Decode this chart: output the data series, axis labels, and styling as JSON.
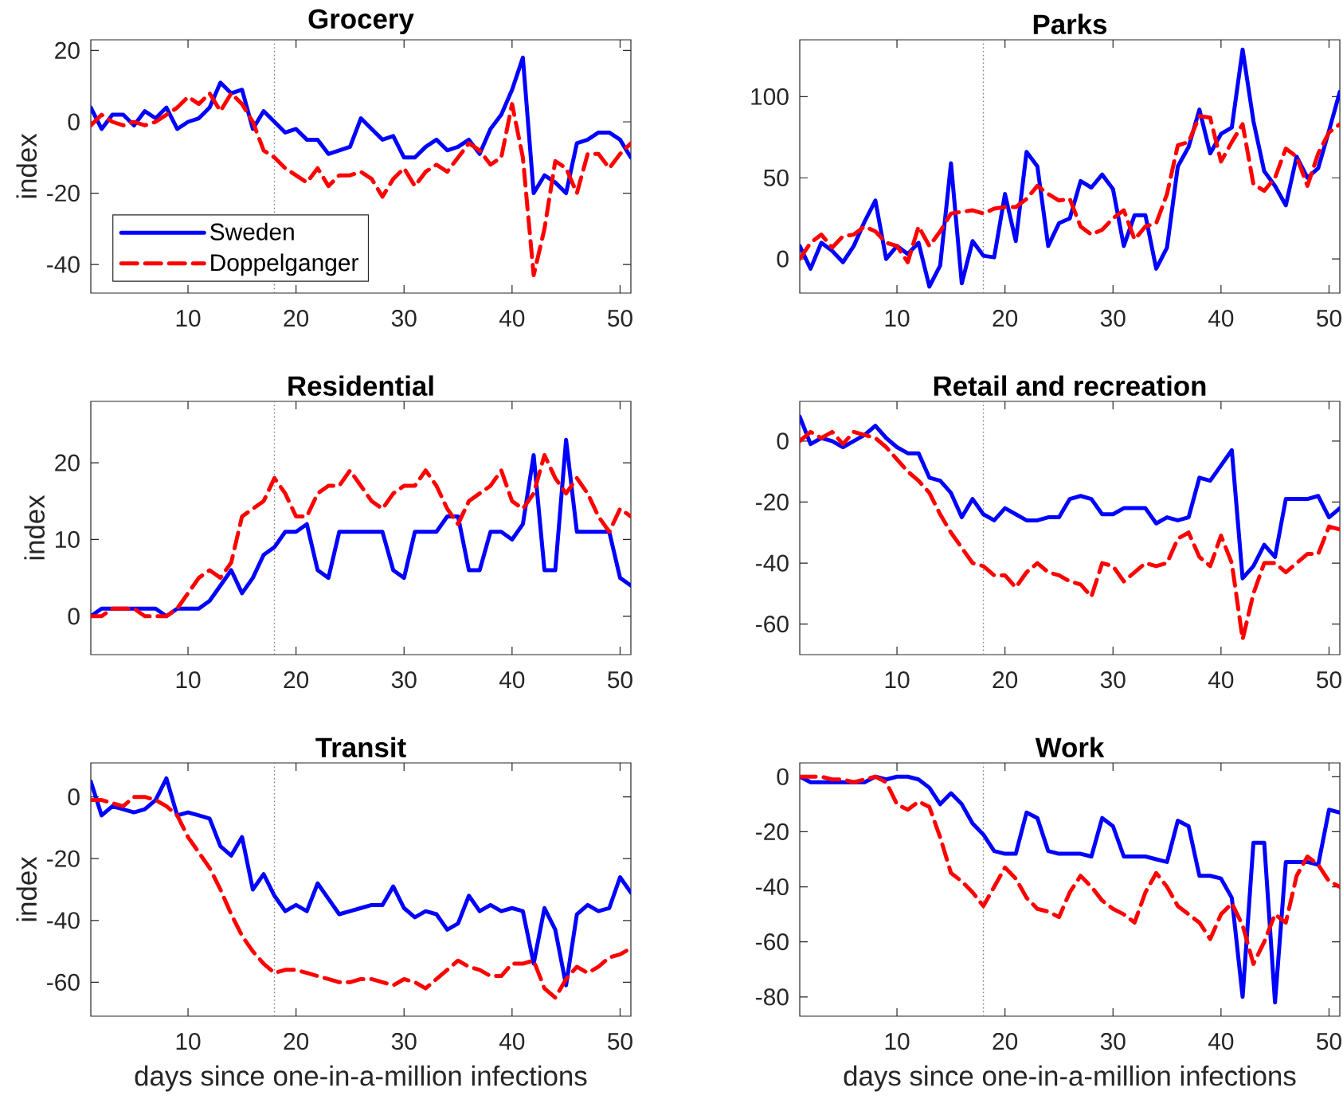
{
  "chart_data": [
    {
      "type": "line",
      "title": "Grocery",
      "ylabel": "index",
      "x": [
        1,
        2,
        3,
        4,
        5,
        6,
        7,
        8,
        9,
        10,
        11,
        12,
        13,
        14,
        15,
        16,
        17,
        18,
        19,
        20,
        21,
        22,
        23,
        24,
        25,
        26,
        27,
        28,
        29,
        30,
        31,
        32,
        33,
        34,
        35,
        36,
        37,
        38,
        39,
        40,
        41,
        42,
        43,
        44,
        45,
        46,
        47,
        48,
        49,
        50,
        51
      ],
      "xlim": [
        1,
        51
      ],
      "ylim": [
        -48,
        23
      ],
      "xticks": [
        10,
        20,
        30,
        40,
        50
      ],
      "yticks": [
        -40,
        -20,
        0,
        20
      ],
      "legend": "bottom left",
      "series": [
        {
          "name": "Sweden",
          "color": "#0000ff",
          "line_style": "solid",
          "values": [
            4,
            -2,
            2,
            2,
            -1,
            3,
            1,
            4,
            -2,
            0,
            1,
            4,
            11,
            8,
            9,
            -2,
            3,
            0,
            -3,
            -2,
            -5,
            -5,
            -9,
            -8,
            -7,
            1,
            -2,
            -5,
            -4,
            -10,
            -10,
            -7,
            -5,
            -8,
            -7,
            -5,
            -9,
            -2,
            2,
            9,
            18,
            -20,
            -15,
            -17,
            -20,
            -6,
            -5,
            -3,
            -3,
            -5,
            -10
          ]
        },
        {
          "name": "Doppelganger",
          "color": "#ff0000",
          "line_style": "dashed",
          "values": [
            -1,
            2,
            0,
            -1,
            0,
            -1,
            0,
            2,
            4,
            7,
            5,
            8,
            3,
            8,
            5,
            0,
            -8,
            -10,
            -13,
            -15,
            -17,
            -13,
            -18,
            -15,
            -15,
            -14,
            -16,
            -21,
            -16,
            -13,
            -18,
            -14,
            -12,
            -14,
            -10,
            -6,
            -8,
            -12,
            -10,
            5,
            -10,
            -43,
            -30,
            -11,
            -13,
            -20,
            -9,
            -9,
            -13,
            -9,
            -6
          ]
        }
      ],
      "ref_lines": [
        {
          "axis": "x",
          "value": 18,
          "color": "#808080",
          "line_style": "dotted"
        }
      ]
    },
    {
      "type": "line",
      "title": "Parks",
      "x": [
        1,
        2,
        3,
        4,
        5,
        6,
        7,
        8,
        9,
        10,
        11,
        12,
        13,
        14,
        15,
        16,
        17,
        18,
        19,
        20,
        21,
        22,
        23,
        24,
        25,
        26,
        27,
        28,
        29,
        30,
        31,
        32,
        33,
        34,
        35,
        36,
        37,
        38,
        39,
        40,
        41,
        42,
        43,
        44,
        45,
        46,
        47,
        48,
        49,
        50,
        51
      ],
      "xlim": [
        1,
        51
      ],
      "ylim": [
        -21,
        135
      ],
      "xticks": [
        10,
        20,
        30,
        40,
        50
      ],
      "yticks": [
        0,
        50,
        100
      ],
      "series": [
        {
          "color": "#0000ff",
          "line_style": "solid",
          "values": [
            8,
            -6,
            10,
            5,
            -2,
            8,
            23,
            36,
            0,
            8,
            3,
            10,
            -17,
            -4,
            59,
            -15,
            11,
            2,
            1,
            40,
            11,
            66,
            57,
            8,
            22,
            25,
            48,
            44,
            52,
            43,
            8,
            27,
            27,
            -6,
            7,
            57,
            69,
            92,
            65,
            77,
            81,
            129,
            85,
            54,
            45,
            33,
            63,
            50,
            56,
            79,
            103
          ]
        },
        {
          "color": "#ff0000",
          "line_style": "dashed",
          "values": [
            0,
            10,
            15,
            7,
            14,
            15,
            20,
            17,
            10,
            8,
            -2,
            20,
            8,
            17,
            28,
            29,
            30,
            28,
            31,
            32,
            32,
            37,
            45,
            40,
            36,
            37,
            20,
            15,
            18,
            25,
            30,
            12,
            20,
            22,
            40,
            70,
            72,
            88,
            87,
            60,
            72,
            83,
            46,
            42,
            50,
            68,
            63,
            45,
            65,
            78,
            83
          ]
        }
      ],
      "ref_lines": [
        {
          "axis": "x",
          "value": 18,
          "color": "#808080",
          "line_style": "dotted"
        }
      ]
    },
    {
      "type": "line",
      "title": "Residential",
      "ylabel": "index",
      "x": [
        1,
        2,
        3,
        4,
        5,
        6,
        7,
        8,
        9,
        10,
        11,
        12,
        13,
        14,
        15,
        16,
        17,
        18,
        19,
        20,
        21,
        22,
        23,
        24,
        25,
        26,
        27,
        28,
        29,
        30,
        31,
        32,
        33,
        34,
        35,
        36,
        37,
        38,
        39,
        40,
        41,
        42,
        43,
        44,
        45,
        46,
        47,
        48,
        49,
        50,
        51
      ],
      "xlim": [
        1,
        51
      ],
      "ylim": [
        -5,
        28
      ],
      "xticks": [
        10,
        20,
        30,
        40,
        50
      ],
      "yticks": [
        0,
        10,
        20
      ],
      "series": [
        {
          "color": "#0000ff",
          "line_style": "solid",
          "values": [
            0,
            1,
            1,
            1,
            1,
            1,
            1,
            0,
            1,
            1,
            1,
            2,
            4,
            6,
            3,
            5,
            8,
            9,
            11,
            11,
            12,
            6,
            5,
            11,
            11,
            11,
            11,
            11,
            6,
            5,
            11,
            11,
            11,
            13,
            13,
            6,
            6,
            11,
            11,
            10,
            12,
            21,
            6,
            6,
            23,
            11,
            11,
            11,
            11,
            5,
            4
          ]
        },
        {
          "color": "#ff0000",
          "line_style": "dashed",
          "values": [
            0,
            0,
            1,
            1,
            1,
            0,
            0,
            0,
            1,
            3,
            5,
            6,
            5,
            7,
            13,
            14,
            15,
            18,
            16,
            13,
            13,
            16,
            17,
            17,
            19,
            17,
            15,
            14,
            16,
            17,
            17,
            19,
            17,
            14,
            12,
            15,
            16,
            17,
            19,
            15,
            14,
            16,
            21,
            18,
            16,
            18,
            16,
            13,
            11,
            14,
            13
          ]
        }
      ],
      "ref_lines": [
        {
          "axis": "x",
          "value": 18,
          "color": "#808080",
          "line_style": "dotted"
        }
      ]
    },
    {
      "type": "line",
      "title": "Retail and recreation",
      "x": [
        1,
        2,
        3,
        4,
        5,
        6,
        7,
        8,
        9,
        10,
        11,
        12,
        13,
        14,
        15,
        16,
        17,
        18,
        19,
        20,
        21,
        22,
        23,
        24,
        25,
        26,
        27,
        28,
        29,
        30,
        31,
        32,
        33,
        34,
        35,
        36,
        37,
        38,
        39,
        40,
        41,
        42,
        43,
        44,
        45,
        46,
        47,
        48,
        49,
        50,
        51
      ],
      "xlim": [
        1,
        51
      ],
      "ylim": [
        -70,
        13
      ],
      "xticks": [
        10,
        20,
        30,
        40,
        50
      ],
      "yticks": [
        -60,
        -40,
        -20,
        0
      ],
      "series": [
        {
          "color": "#0000ff",
          "line_style": "solid",
          "values": [
            8,
            -1,
            1,
            0,
            -2,
            0,
            2,
            5,
            1,
            -2,
            -4,
            -4,
            -12,
            -13,
            -17,
            -25,
            -19,
            -24,
            -26,
            -22,
            -24,
            -26,
            -26,
            -25,
            -25,
            -19,
            -18,
            -19,
            -24,
            -24,
            -22,
            -22,
            -22,
            -27,
            -25,
            -26,
            -25,
            -12,
            -13,
            -8,
            -3,
            -45,
            -41,
            -34,
            -38,
            -19,
            -19,
            -19,
            -18,
            -25,
            -22
          ]
        },
        {
          "color": "#ff0000",
          "line_style": "dashed",
          "values": [
            0,
            3,
            1,
            3,
            -1,
            3,
            2,
            1,
            -2,
            -6,
            -10,
            -13,
            -17,
            -24,
            -30,
            -35,
            -40,
            -41,
            -44,
            -44,
            -48,
            -43,
            -40,
            -43,
            -44,
            -46,
            -47,
            -51,
            -40,
            -41,
            -46,
            -43,
            -40,
            -41,
            -40,
            -32,
            -30,
            -38,
            -41,
            -31,
            -40,
            -65,
            -50,
            -40,
            -40,
            -43,
            -40,
            -37,
            -37,
            -28,
            -29
          ]
        }
      ],
      "ref_lines": [
        {
          "axis": "x",
          "value": 18,
          "color": "#808080",
          "line_style": "dotted"
        }
      ]
    },
    {
      "type": "line",
      "title": "Transit",
      "xlabel": "days since one-in-a-million infections",
      "ylabel": "index",
      "x": [
        1,
        2,
        3,
        4,
        5,
        6,
        7,
        8,
        9,
        10,
        11,
        12,
        13,
        14,
        15,
        16,
        17,
        18,
        19,
        20,
        21,
        22,
        23,
        24,
        25,
        26,
        27,
        28,
        29,
        30,
        31,
        32,
        33,
        34,
        35,
        36,
        37,
        38,
        39,
        40,
        41,
        42,
        43,
        44,
        45,
        46,
        47,
        48,
        49,
        50,
        51
      ],
      "xlim": [
        1,
        51
      ],
      "ylim": [
        -71,
        11
      ],
      "xticks": [
        10,
        20,
        30,
        40,
        50
      ],
      "yticks": [
        -60,
        -40,
        -20,
        0
      ],
      "series": [
        {
          "color": "#0000ff",
          "line_style": "solid",
          "values": [
            5,
            -6,
            -3,
            -4,
            -5,
            -4,
            -1,
            6,
            -6,
            -5,
            -6,
            -7,
            -16,
            -19,
            -13,
            -30,
            -25,
            -32,
            -37,
            -35,
            -37,
            -28,
            -33,
            -38,
            -37,
            -36,
            -35,
            -35,
            -29,
            -36,
            -39,
            -37,
            -38,
            -43,
            -41,
            -32,
            -37,
            -35,
            -37,
            -36,
            -37,
            -54,
            -36,
            -43,
            -61,
            -38,
            -35,
            -37,
            -36,
            -26,
            -31
          ]
        },
        {
          "color": "#ff0000",
          "line_style": "dashed",
          "values": [
            -1,
            -1,
            -2,
            -3,
            0,
            0,
            -1,
            -3,
            -6,
            -13,
            -18,
            -23,
            -30,
            -38,
            -45,
            -50,
            -54,
            -57,
            -56,
            -56,
            -57,
            -58,
            -59,
            -60,
            -60,
            -59,
            -59,
            -60,
            -61,
            -59,
            -60,
            -62,
            -59,
            -56,
            -53,
            -55,
            -56,
            -58,
            -58,
            -54,
            -54,
            -53,
            -62,
            -65,
            -59,
            -55,
            -57,
            -55,
            -52,
            -51,
            -49
          ]
        }
      ],
      "ref_lines": [
        {
          "axis": "x",
          "value": 18,
          "color": "#808080",
          "line_style": "dotted"
        }
      ]
    },
    {
      "type": "line",
      "title": "Work",
      "xlabel": "days since one-in-a-million infections",
      "x": [
        1,
        2,
        3,
        4,
        5,
        6,
        7,
        8,
        9,
        10,
        11,
        12,
        13,
        14,
        15,
        16,
        17,
        18,
        19,
        20,
        21,
        22,
        23,
        24,
        25,
        26,
        27,
        28,
        29,
        30,
        31,
        32,
        33,
        34,
        35,
        36,
        37,
        38,
        39,
        40,
        41,
        42,
        43,
        44,
        45,
        46,
        47,
        48,
        49,
        50,
        51
      ],
      "xlim": [
        1,
        51
      ],
      "ylim": [
        -87,
        5
      ],
      "xticks": [
        10,
        20,
        30,
        40,
        50
      ],
      "yticks": [
        -80,
        -60,
        -40,
        -20,
        0
      ],
      "series": [
        {
          "color": "#0000ff",
          "line_style": "solid",
          "values": [
            0,
            -2,
            -2,
            -2,
            -2,
            -2,
            -2,
            0,
            -1,
            0,
            0,
            -1,
            -4,
            -10,
            -6,
            -10,
            -17,
            -21,
            -27,
            -28,
            -28,
            -13,
            -15,
            -27,
            -28,
            -28,
            -28,
            -29,
            -15,
            -18,
            -29,
            -29,
            -29,
            -30,
            -31,
            -16,
            -18,
            -36,
            -36,
            -37,
            -44,
            -80,
            -24,
            -24,
            -82,
            -31,
            -31,
            -31,
            -32,
            -12,
            -13
          ]
        },
        {
          "color": "#ff0000",
          "line_style": "dashed",
          "values": [
            0,
            0,
            0,
            -1,
            -1,
            -2,
            -1,
            0,
            -2,
            -10,
            -12,
            -9,
            -11,
            -22,
            -35,
            -38,
            -42,
            -47,
            -40,
            -33,
            -37,
            -44,
            -48,
            -49,
            -51,
            -42,
            -36,
            -40,
            -45,
            -48,
            -50,
            -53,
            -42,
            -35,
            -40,
            -47,
            -50,
            -53,
            -59,
            -50,
            -46,
            -54,
            -68,
            -60,
            -50,
            -53,
            -36,
            -29,
            -32,
            -38,
            -40
          ]
        }
      ],
      "ref_lines": [
        {
          "axis": "x",
          "value": 18,
          "color": "#808080",
          "line_style": "dotted"
        }
      ]
    }
  ]
}
